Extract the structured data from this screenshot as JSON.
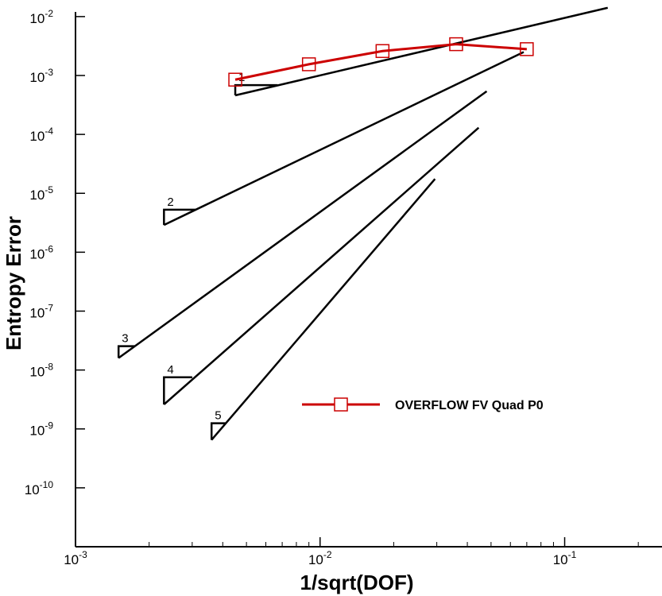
{
  "chart_data": {
    "type": "line",
    "xlabel": "1/sqrt(DOF)",
    "ylabel": "Entropy Error",
    "xscale": "log",
    "yscale": "log",
    "xlim": [
      0.001,
      0.25
    ],
    "ylim": [
      1e-11,
      0.012
    ],
    "x_ticks": [
      {
        "base": "10",
        "exp": "-3",
        "value": 0.001
      },
      {
        "base": "10",
        "exp": "-2",
        "value": 0.01
      },
      {
        "base": "10",
        "exp": "-1",
        "value": 0.1
      }
    ],
    "y_ticks": [
      {
        "base": "10",
        "exp": "-2",
        "value": 0.01
      },
      {
        "base": "10",
        "exp": "-3",
        "value": 0.001
      },
      {
        "base": "10",
        "exp": "-4",
        "value": 0.0001
      },
      {
        "base": "10",
        "exp": "-5",
        "value": 1e-05
      },
      {
        "base": "10",
        "exp": "-6",
        "value": 1e-06
      },
      {
        "base": "10",
        "exp": "-7",
        "value": 1e-07
      },
      {
        "base": "10",
        "exp": "-8",
        "value": 1e-08
      },
      {
        "base": "10",
        "exp": "-9",
        "value": 1e-09
      },
      {
        "base": "10",
        "exp": "-10",
        "value": 1e-10
      }
    ],
    "series": [
      {
        "name": "OVERFLOW FV Quad P0",
        "color": "#cc0000",
        "marker": "open-square",
        "x": [
          0.0045,
          0.009,
          0.018,
          0.036,
          0.07
        ],
        "y": [
          0.00085,
          0.00155,
          0.0026,
          0.0034,
          0.0028
        ]
      }
    ],
    "reference_lines": [
      {
        "label": "1",
        "order": 1,
        "x": [
          0.0045,
          0.15
        ],
        "y": [
          0.00046,
          0.0141
        ],
        "triangle_dx": 0.0022
      },
      {
        "label": "2",
        "order": 2,
        "x": [
          0.0023,
          0.068
        ],
        "y": [
          2.9e-06,
          0.0025
        ],
        "triangle_dx": 0.0008
      },
      {
        "label": "3",
        "order": 3,
        "x": [
          0.0015,
          0.048
        ],
        "y": [
          1.6e-08,
          0.00054
        ],
        "triangle_dx": 0.00025
      },
      {
        "label": "4",
        "order": 4,
        "x": [
          0.0023,
          0.0445
        ],
        "y": [
          2.6e-09,
          0.00013
        ],
        "triangle_dx": 0.0007
      },
      {
        "label": "5",
        "order": 5,
        "x": [
          0.0036,
          0.0295
        ],
        "y": [
          6.5e-10,
          1.75e-05
        ],
        "triangle_dx": 0.0005
      }
    ],
    "legend_position": "center-right",
    "grid": false
  }
}
